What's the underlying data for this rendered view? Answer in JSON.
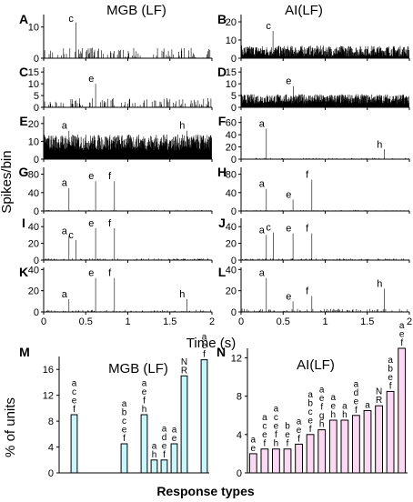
{
  "figure": {
    "col_titles": [
      "MGB (LF)",
      "AI(LF)"
    ],
    "ylabel_top": "Spikes/bin",
    "xlabel_top": "Time (s)",
    "ylabel_bottom": "% of units",
    "xlabel_bottom": "Response types"
  },
  "chart_data": [
    {
      "type": "line",
      "panel": "A",
      "row": 0,
      "col": 0,
      "x_range": [
        0,
        2
      ],
      "ylim": [
        0,
        14
      ],
      "yticks": [
        0,
        10
      ],
      "baseline": 1.5,
      "noise": 3.5,
      "dense": false,
      "peaks": [
        {
          "x": 0.38,
          "v": 11.5,
          "label": "c"
        }
      ]
    },
    {
      "type": "line",
      "panel": "B",
      "row": 0,
      "col": 1,
      "x_range": [
        0,
        2
      ],
      "ylim": [
        0,
        24
      ],
      "yticks": [
        0,
        10,
        20
      ],
      "baseline": 3,
      "noise": 6,
      "dense": true,
      "peaks": [
        {
          "x": 0.38,
          "v": 15,
          "label": "c"
        }
      ]
    },
    {
      "type": "line",
      "panel": "C",
      "row": 1,
      "col": 0,
      "x_range": [
        0,
        2
      ],
      "ylim": [
        0,
        17
      ],
      "yticks": [
        0,
        5,
        10,
        15
      ],
      "baseline": 2,
      "noise": 4,
      "dense": false,
      "peaks": [
        {
          "x": 0.62,
          "v": 10,
          "label": "e"
        }
      ]
    },
    {
      "type": "line",
      "panel": "D",
      "row": 1,
      "col": 1,
      "x_range": [
        0,
        2
      ],
      "ylim": [
        0,
        17
      ],
      "yticks": [
        0,
        5,
        10,
        15
      ],
      "baseline": 3,
      "noise": 4,
      "dense": true,
      "peaks": [
        {
          "x": 0.62,
          "v": 9,
          "label": "e"
        }
      ]
    },
    {
      "type": "line",
      "panel": "E",
      "row": 2,
      "col": 0,
      "x_range": [
        0,
        2
      ],
      "ylim": [
        0,
        24
      ],
      "yticks": [
        0,
        10,
        20
      ],
      "baseline": 8,
      "noise": 9,
      "dense": true,
      "peaks": [
        {
          "x": 0.3,
          "v": 16,
          "label": "a"
        },
        {
          "x": 1.7,
          "v": 16,
          "label": "h"
        }
      ]
    },
    {
      "type": "line",
      "panel": "F",
      "row": 2,
      "col": 1,
      "x_range": [
        0,
        2
      ],
      "ylim": [
        0,
        70
      ],
      "yticks": [
        0,
        20,
        40,
        60
      ],
      "baseline": 1,
      "noise": 2,
      "dense": false,
      "peaks": [
        {
          "x": 0.3,
          "v": 50,
          "label": "a"
        },
        {
          "x": 1.7,
          "v": 16,
          "label": "h"
        }
      ]
    },
    {
      "type": "line",
      "panel": "G",
      "row": 3,
      "col": 0,
      "x_range": [
        0,
        2
      ],
      "ylim": [
        0,
        95
      ],
      "yticks": [
        0,
        40,
        80
      ],
      "baseline": 1,
      "noise": 2,
      "dense": false,
      "peaks": [
        {
          "x": 0.3,
          "v": 50,
          "label": "a"
        },
        {
          "x": 0.62,
          "v": 65,
          "label": "e"
        },
        {
          "x": 0.84,
          "v": 65,
          "label": "f"
        }
      ]
    },
    {
      "type": "line",
      "panel": "H",
      "row": 3,
      "col": 1,
      "x_range": [
        0,
        2
      ],
      "ylim": [
        0,
        95
      ],
      "yticks": [
        0,
        40,
        80
      ],
      "baseline": 1,
      "noise": 2,
      "dense": false,
      "peaks": [
        {
          "x": 0.3,
          "v": 48,
          "label": "a"
        },
        {
          "x": 0.62,
          "v": 25,
          "label": "e"
        },
        {
          "x": 0.84,
          "v": 68,
          "label": "f"
        }
      ]
    },
    {
      "type": "line",
      "panel": "I",
      "row": 4,
      "col": 0,
      "x_range": [
        0,
        2
      ],
      "ylim": [
        0,
        50
      ],
      "yticks": [
        0,
        20,
        40
      ],
      "baseline": 1,
      "noise": 2,
      "dense": false,
      "peaks": [
        {
          "x": 0.3,
          "v": 29,
          "label": "a"
        },
        {
          "x": 0.38,
          "v": 24,
          "label": "c"
        },
        {
          "x": 0.62,
          "v": 38,
          "label": "e"
        },
        {
          "x": 0.84,
          "v": 38,
          "label": "f"
        }
      ]
    },
    {
      "type": "line",
      "panel": "J",
      "row": 4,
      "col": 1,
      "x_range": [
        0,
        2
      ],
      "ylim": [
        0,
        50
      ],
      "yticks": [
        0,
        20,
        40
      ],
      "baseline": 1,
      "noise": 2,
      "dense": false,
      "peaks": [
        {
          "x": 0.3,
          "v": 30,
          "label": "a"
        },
        {
          "x": 0.38,
          "v": 33,
          "label": "c"
        },
        {
          "x": 0.62,
          "v": 32,
          "label": "e"
        },
        {
          "x": 0.84,
          "v": 32,
          "label": "f"
        }
      ]
    },
    {
      "type": "line",
      "panel": "K",
      "row": 5,
      "col": 0,
      "x_range": [
        0,
        2
      ],
      "ylim": [
        0,
        42
      ],
      "yticks": [
        0,
        20,
        40
      ],
      "baseline": 1,
      "noise": 2,
      "dense": false,
      "peaks": [
        {
          "x": 0.3,
          "v": 12,
          "label": "a"
        },
        {
          "x": 0.62,
          "v": 32,
          "label": "e"
        },
        {
          "x": 0.84,
          "v": 32,
          "label": "f"
        },
        {
          "x": 1.7,
          "v": 12,
          "label": "h"
        }
      ]
    },
    {
      "type": "line",
      "panel": "L",
      "row": 5,
      "col": 1,
      "x_range": [
        0,
        2
      ],
      "ylim": [
        0,
        42
      ],
      "yticks": [
        0,
        20,
        40
      ],
      "baseline": 2,
      "noise": 3,
      "dense": false,
      "peaks": [
        {
          "x": 0.3,
          "v": 32,
          "label": "a"
        },
        {
          "x": 0.62,
          "v": 10,
          "label": "e"
        },
        {
          "x": 0.84,
          "v": 15,
          "label": "f"
        },
        {
          "x": 1.7,
          "v": 22,
          "label": "h"
        }
      ]
    }
  ],
  "xticks": [
    0,
    0.5,
    1,
    1.5,
    2
  ],
  "bar_charts": [
    {
      "panel": "M",
      "title": "MGB (LF)",
      "type": "bar",
      "color": "#c8f6fa",
      "ylim": [
        0,
        18
      ],
      "yticks": [
        0,
        4,
        8,
        12,
        16
      ],
      "bars": [
        {
          "slot": 1,
          "value": 9,
          "label": [
            "a",
            "c",
            "e",
            "f"
          ]
        },
        {
          "slot": 6,
          "value": 4.5,
          "label": [
            "a",
            "b",
            "c",
            "e",
            "f"
          ]
        },
        {
          "slot": 8,
          "value": 9,
          "label": [
            "a",
            "e",
            "f",
            "h"
          ]
        },
        {
          "slot": 9,
          "value": 2,
          "label": [
            "a",
            "h"
          ]
        },
        {
          "slot": 10,
          "value": 2,
          "label": [
            "a",
            "d",
            "e",
            "f"
          ]
        },
        {
          "slot": 11,
          "value": 4.5,
          "label": [
            "a",
            "e"
          ]
        },
        {
          "slot": 12,
          "value": 15,
          "label": [
            "N",
            "R"
          ]
        },
        {
          "slot": 14,
          "value": 17.5,
          "label": [
            "a",
            "e",
            "f"
          ]
        }
      ]
    },
    {
      "panel": "N",
      "title": "AI(LF)",
      "type": "bar",
      "color": "#fbd9f2",
      "ylim": [
        0,
        13
      ],
      "yticks": [
        0,
        4,
        8,
        12
      ],
      "bars": [
        {
          "slot": 0,
          "value": 2,
          "label": [
            "a",
            "e"
          ]
        },
        {
          "slot": 1,
          "value": 2.5,
          "label": [
            "a",
            "c",
            "e",
            "f"
          ]
        },
        {
          "slot": 2,
          "value": 2.5,
          "label": [
            "a",
            "c",
            "e",
            "f",
            "h"
          ]
        },
        {
          "slot": 3,
          "value": 2.5,
          "label": [
            "b",
            "e",
            "f"
          ]
        },
        {
          "slot": 4,
          "value": 3,
          "label": [
            "a",
            "e",
            "f"
          ]
        },
        {
          "slot": 5,
          "value": 4,
          "label": [
            "a",
            "b",
            "c",
            "e",
            "f"
          ]
        },
        {
          "slot": 6,
          "value": 4.5,
          "label": [
            "a",
            "e",
            "f",
            "g",
            "h"
          ]
        },
        {
          "slot": 7,
          "value": 5.5,
          "label": [
            "a",
            "e",
            "h"
          ]
        },
        {
          "slot": 8,
          "value": 5.5,
          "label": [
            "a",
            "h"
          ]
        },
        {
          "slot": 9,
          "value": 6,
          "label": [
            "a",
            "d",
            "e",
            "f"
          ]
        },
        {
          "slot": 10,
          "value": 6.5,
          "label": [
            "a"
          ]
        },
        {
          "slot": 11,
          "value": 7,
          "label": [
            "N",
            "R"
          ]
        },
        {
          "slot": 12,
          "value": 8.5,
          "label": [
            "a",
            "b",
            "e",
            "f"
          ]
        },
        {
          "slot": 13,
          "value": 13,
          "label": [
            "a",
            "e",
            "f"
          ]
        }
      ]
    }
  ]
}
